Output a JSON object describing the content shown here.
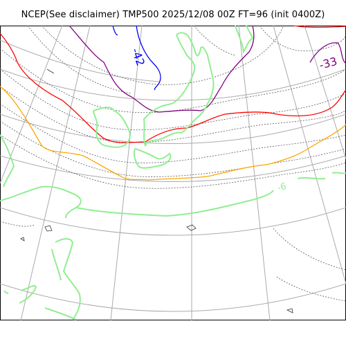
{
  "header": {
    "title": "NCEP(See disclaimer) TMP500 2025/12/08 00Z FT=96 (init 0400Z)"
  },
  "map": {
    "contour_labels": [
      {
        "text": "-42",
        "color": "#0000ff"
      },
      {
        "text": "-33",
        "color": "#800080"
      },
      {
        "text": "-6",
        "color": "#90ee90"
      }
    ],
    "colors": {
      "grid": "#aaaaaa",
      "coastline": "#90ee90",
      "contour_cold": "#0000ff",
      "contour_purple": "#800080",
      "contour_red": "#ff0000",
      "contour_orange": "#ffa500",
      "contour_dotted": "#555555"
    }
  }
}
